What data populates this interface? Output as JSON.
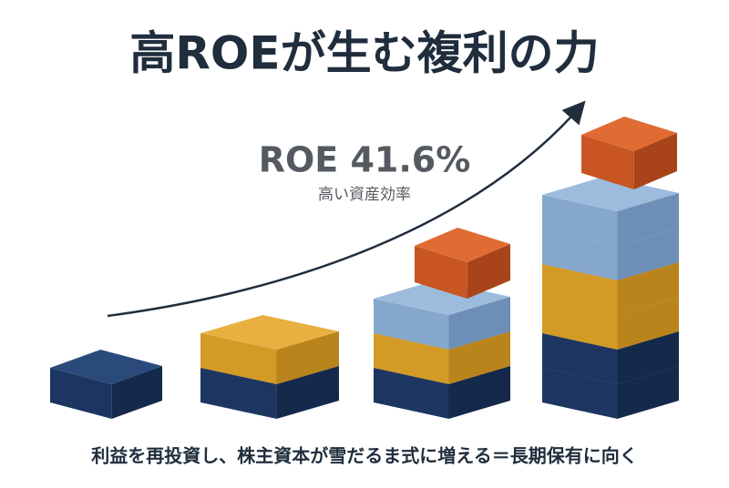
{
  "title": "高ROEが生む複利の力",
  "annotation": {
    "label": "ROE 41.6%",
    "sublabel": "高い資産効率"
  },
  "caption": "利益を再投資し、株主資本が雪だるま式に増える＝長期保有に向く"
}
